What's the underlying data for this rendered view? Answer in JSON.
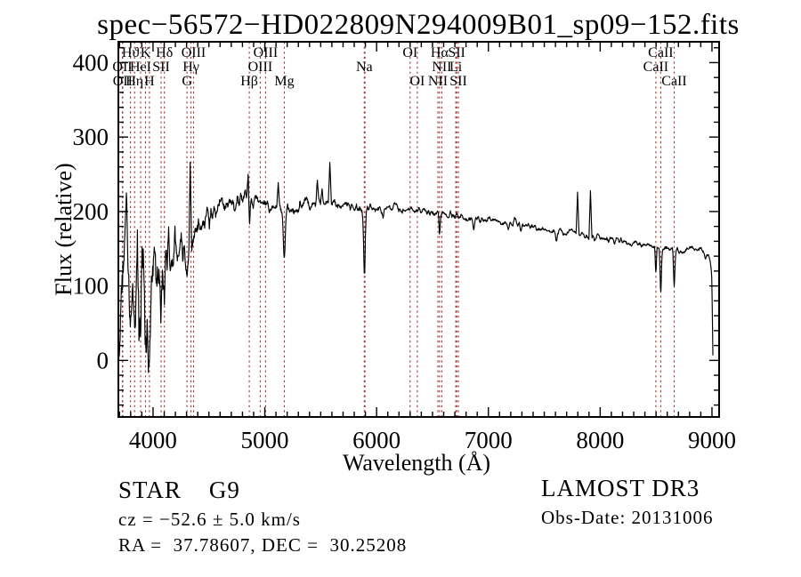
{
  "annotations": {
    "class_line": "STAR    G9",
    "cz_line": "cz = −52.6 ± 5.0 km/s",
    "radec_line": "RA =  37.78607, DEC =  30.25208",
    "survey": "LAMOST DR3",
    "obs_date": "Obs-Date: 20131006"
  },
  "chart_data": {
    "type": "line",
    "title": "spec−56572−HD022809N294009B01_sp09−152.fits",
    "xlabel": "Wavelength (Å)",
    "ylabel": "Flux (relative)",
    "xlim": [
      3690,
      9064
    ],
    "ylim": [
      -76,
      428
    ],
    "x_ticks": [
      4000,
      5000,
      6000,
      7000,
      8000,
      9000
    ],
    "y_ticks": [
      0,
      100,
      200,
      300,
      400
    ],
    "x_minor_step": 100,
    "y_minor_step": 20,
    "grid": false,
    "spectrum_color": "#000000",
    "line_marker_color": "#9b3232",
    "spectral_lines": [
      {
        "label": "OII",
        "wl": 3726,
        "row": 2
      },
      {
        "label": "OII",
        "wl": 3729,
        "row": 3
      },
      {
        "label": "Hϑ",
        "wl": 3798,
        "row": 1
      },
      {
        "label": "Hη",
        "wl": 3835,
        "row": 3
      },
      {
        "label": "HeI",
        "wl": 3889,
        "row": 2
      },
      {
        "label": "K",
        "wl": 3933,
        "row": 1
      },
      {
        "label": "H",
        "wl": 3968,
        "row": 3
      },
      {
        "label": "SII",
        "wl": 4072,
        "row": 2
      },
      {
        "label": "Hδ",
        "wl": 4102,
        "row": 1
      },
      {
        "label": "G",
        "wl": 4304,
        "row": 3
      },
      {
        "label": "Hγ",
        "wl": 4340,
        "row": 2
      },
      {
        "label": "OIII",
        "wl": 4363,
        "row": 1
      },
      {
        "label": "Hβ",
        "wl": 4861,
        "row": 3
      },
      {
        "label": "OIII",
        "wl": 4959,
        "row": 2
      },
      {
        "label": "OIII",
        "wl": 5007,
        "row": 1
      },
      {
        "label": "Mg",
        "wl": 5175,
        "row": 3
      },
      {
        "label": "Na",
        "wl": 5890,
        "row": 2
      },
      {
        "label": "",
        "wl": 5896,
        "row": 2
      },
      {
        "label": "OI",
        "wl": 6300,
        "row": 1
      },
      {
        "label": "OI",
        "wl": 6364,
        "row": 3
      },
      {
        "label": "NII",
        "wl": 6548,
        "row": 3
      },
      {
        "label": "Hα",
        "wl": 6563,
        "row": 1
      },
      {
        "label": "NII",
        "wl": 6583,
        "row": 2
      },
      {
        "label": "Li",
        "wl": 6708,
        "row": 2
      },
      {
        "label": "SII",
        "wl": 6716,
        "row": 1
      },
      {
        "label": "SII",
        "wl": 6731,
        "row": 3
      },
      {
        "label": "CaII",
        "wl": 8498,
        "row": 2
      },
      {
        "label": "CaII",
        "wl": 8542,
        "row": 1
      },
      {
        "label": "CaII",
        "wl": 8662,
        "row": 3
      }
    ],
    "continuum": [
      [
        3692,
        -10
      ],
      [
        3700,
        20
      ],
      [
        3708,
        60
      ],
      [
        3720,
        100
      ],
      [
        3735,
        120
      ],
      [
        3755,
        132
      ],
      [
        3780,
        130
      ],
      [
        3805,
        126
      ],
      [
        3830,
        120
      ],
      [
        3855,
        113
      ],
      [
        3880,
        106
      ],
      [
        3905,
        100
      ],
      [
        3940,
        100
      ],
      [
        3975,
        105
      ],
      [
        4010,
        115
      ],
      [
        4050,
        118
      ],
      [
        4090,
        122
      ],
      [
        4130,
        130
      ],
      [
        4170,
        143
      ],
      [
        4210,
        150
      ],
      [
        4250,
        151
      ],
      [
        4290,
        148
      ],
      [
        4330,
        155
      ],
      [
        4370,
        166
      ],
      [
        4420,
        178
      ],
      [
        4470,
        190
      ],
      [
        4520,
        198
      ],
      [
        4570,
        204
      ],
      [
        4620,
        208
      ],
      [
        4670,
        211
      ],
      [
        4720,
        214
      ],
      [
        4770,
        217
      ],
      [
        4820,
        219
      ],
      [
        4870,
        217
      ],
      [
        4920,
        216
      ],
      [
        4970,
        213
      ],
      [
        5020,
        209
      ],
      [
        5070,
        206
      ],
      [
        5120,
        203
      ],
      [
        5170,
        201
      ],
      [
        5220,
        202
      ],
      [
        5270,
        205
      ],
      [
        5320,
        206
      ],
      [
        5370,
        208
      ],
      [
        5420,
        211
      ],
      [
        5470,
        213
      ],
      [
        5520,
        214
      ],
      [
        5570,
        212
      ],
      [
        5620,
        211
      ],
      [
        5670,
        210
      ],
      [
        5720,
        209
      ],
      [
        5770,
        208
      ],
      [
        5820,
        206
      ],
      [
        5870,
        205
      ],
      [
        5920,
        204
      ],
      [
        5970,
        204
      ],
      [
        6020,
        204
      ],
      [
        6080,
        204
      ],
      [
        6140,
        204
      ],
      [
        6200,
        203
      ],
      [
        6260,
        202
      ],
      [
        6320,
        201
      ],
      [
        6380,
        200
      ],
      [
        6440,
        200
      ],
      [
        6500,
        199
      ],
      [
        6560,
        199
      ],
      [
        6620,
        197
      ],
      [
        6680,
        196
      ],
      [
        6740,
        194
      ],
      [
        6800,
        193
      ],
      [
        6860,
        191
      ],
      [
        6920,
        189
      ],
      [
        6980,
        189
      ],
      [
        7040,
        188
      ],
      [
        7100,
        187
      ],
      [
        7160,
        185
      ],
      [
        7220,
        184
      ],
      [
        7280,
        182
      ],
      [
        7340,
        181
      ],
      [
        7400,
        180
      ],
      [
        7460,
        178
      ],
      [
        7520,
        177
      ],
      [
        7580,
        175
      ],
      [
        7640,
        173
      ],
      [
        7700,
        172
      ],
      [
        7760,
        170
      ],
      [
        7820,
        168
      ],
      [
        7880,
        167
      ],
      [
        7940,
        166
      ],
      [
        8000,
        166
      ],
      [
        8060,
        164
      ],
      [
        8120,
        162
      ],
      [
        8180,
        161
      ],
      [
        8240,
        159
      ],
      [
        8300,
        158
      ],
      [
        8360,
        157
      ],
      [
        8420,
        156
      ],
      [
        8480,
        153
      ],
      [
        8540,
        149
      ],
      [
        8600,
        150
      ],
      [
        8660,
        148
      ],
      [
        8720,
        147
      ],
      [
        8780,
        150
      ],
      [
        8840,
        151
      ],
      [
        8890,
        149
      ],
      [
        8930,
        146
      ],
      [
        8965,
        142
      ],
      [
        8985,
        136
      ],
      [
        8997,
        118
      ],
      [
        9002,
        80
      ],
      [
        9006,
        30
      ],
      [
        9009,
        2
      ]
    ],
    "noise_segments": [
      [
        3690,
        3712,
        30
      ],
      [
        3712,
        3765,
        60
      ],
      [
        3765,
        3960,
        68
      ],
      [
        3960,
        4150,
        48
      ],
      [
        4150,
        4320,
        26
      ],
      [
        4320,
        4520,
        18
      ],
      [
        4520,
        4800,
        12
      ],
      [
        4800,
        5450,
        9
      ],
      [
        5450,
        5950,
        7.5
      ],
      [
        5950,
        6900,
        6
      ],
      [
        6900,
        7900,
        5
      ],
      [
        7900,
        8700,
        5
      ],
      [
        8700,
        9010,
        4.5
      ]
    ],
    "absorption_features": [
      [
        3798,
        20,
        6
      ],
      [
        3835,
        25,
        6
      ],
      [
        3889,
        20,
        6
      ],
      [
        3933,
        90,
        8
      ],
      [
        3968,
        75,
        7
      ],
      [
        4072,
        30,
        6
      ],
      [
        4101,
        70,
        7
      ],
      [
        4304,
        26,
        10
      ],
      [
        4340,
        18,
        5
      ],
      [
        4861,
        42,
        6
      ],
      [
        5174,
        55,
        8
      ],
      [
        5891,
        88,
        7
      ],
      [
        6563,
        30,
        5
      ],
      [
        6870,
        13,
        9
      ],
      [
        7180,
        8,
        8
      ],
      [
        7607,
        11,
        8
      ],
      [
        8498,
        36,
        5
      ],
      [
        8542,
        58,
        6
      ],
      [
        8662,
        50,
        6
      ]
    ],
    "emission_spikes": [
      [
        3763,
        225
      ],
      [
        4333,
        266
      ],
      [
        4852,
        250
      ],
      [
        5120,
        239
      ],
      [
        5469,
        242
      ],
      [
        5583,
        266
      ],
      [
        7798,
        226
      ],
      [
        7913,
        228
      ]
    ],
    "noise_seed": 56572
  }
}
